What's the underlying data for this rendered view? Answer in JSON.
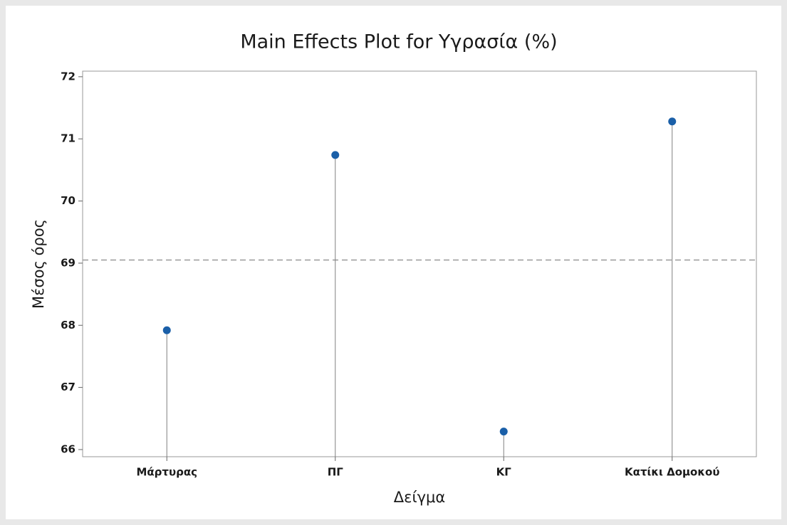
{
  "chart_data": {
    "type": "stem",
    "title": "Main Effects Plot for Υγρασία (%)",
    "x_label": "Δείγμα",
    "y_label": "Μέσος όρος",
    "categories": [
      "Μάρτυρας",
      "ΠΓ",
      "ΚΓ",
      "Κατίκι Δομοκού"
    ],
    "values": [
      67.92,
      70.74,
      66.29,
      71.28
    ],
    "color": "#1a5fa8",
    "stem_color": "#808080",
    "reference_line": 69.05,
    "ylim": [
      65.885,
      72.09
    ],
    "yticks": [
      66,
      67,
      68,
      69,
      70,
      71,
      72
    ],
    "grid": false
  }
}
